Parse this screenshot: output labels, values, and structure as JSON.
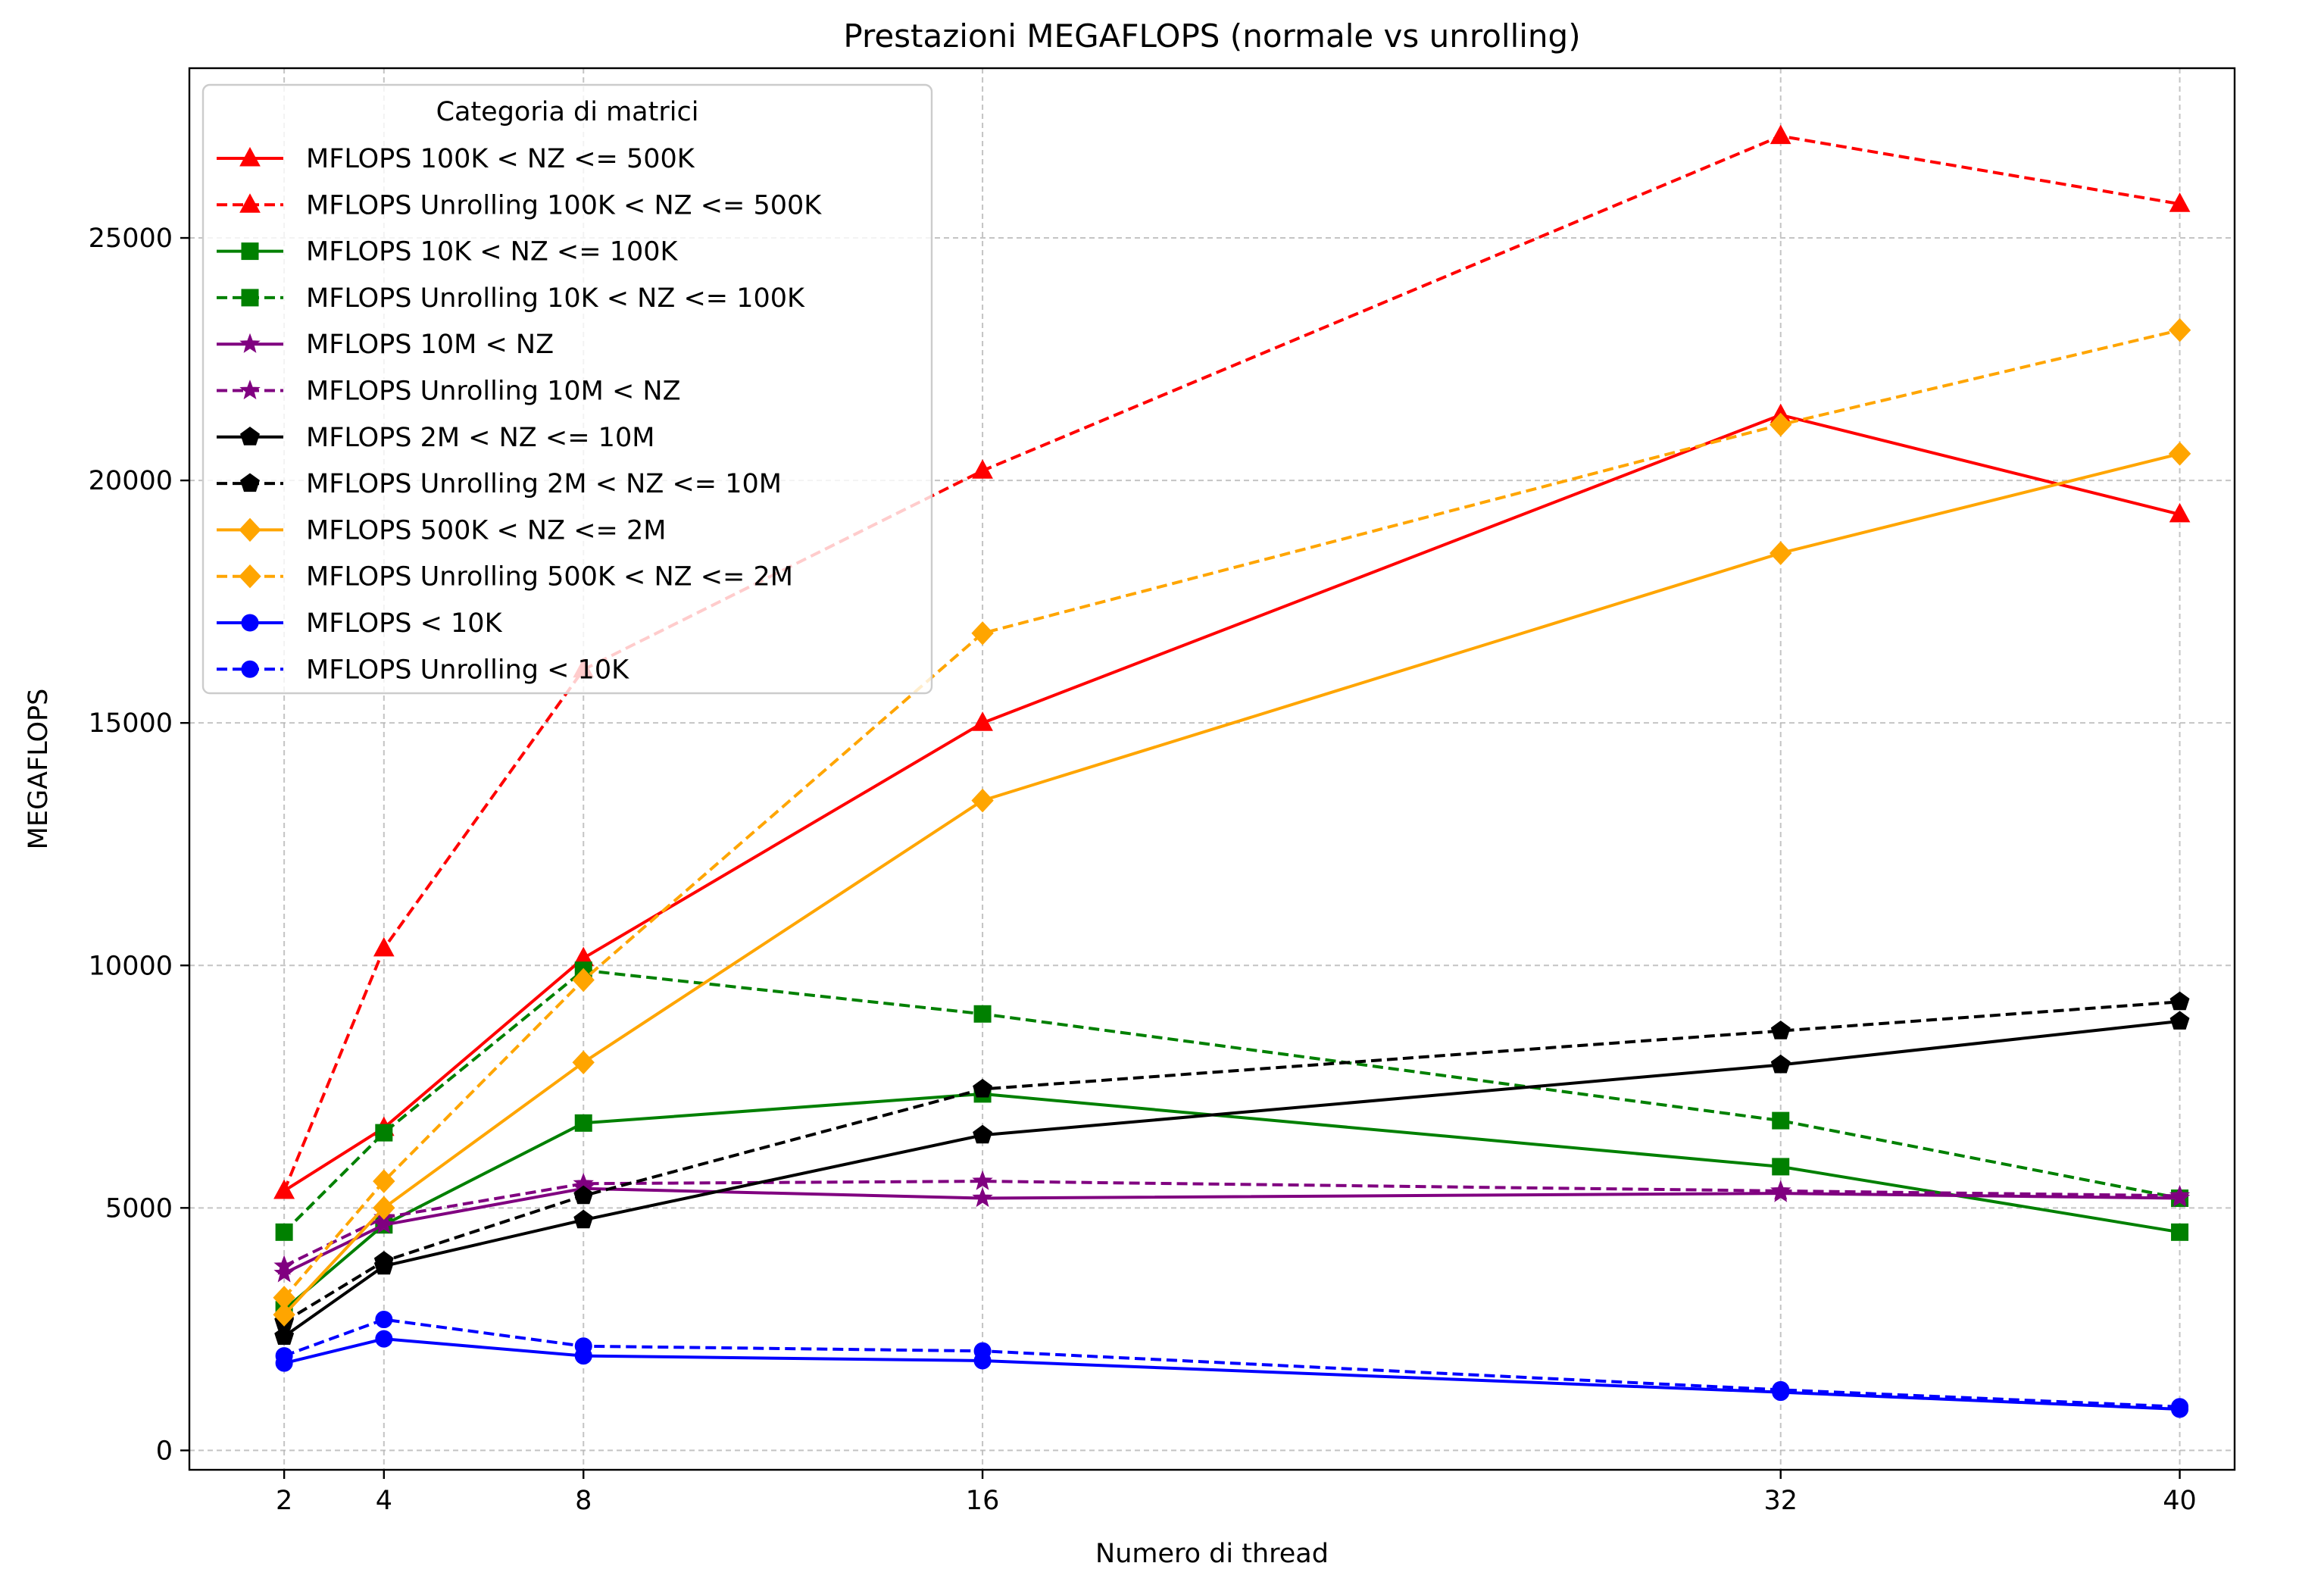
{
  "chart_data": {
    "type": "line",
    "title": "Prestazioni MEGAFLOPS (normale vs unrolling)",
    "xlabel": "Numero di thread",
    "ylabel": "MEGAFLOPS",
    "x": [
      2,
      4,
      8,
      16,
      32,
      40
    ],
    "xticks": [
      2,
      4,
      8,
      16,
      32,
      40
    ],
    "yticks": [
      0,
      5000,
      10000,
      15000,
      20000,
      25000
    ],
    "xlim": [
      0.1,
      41.1
    ],
    "ylim": [
      -400,
      28500
    ],
    "grid": true,
    "legend_title": "Categoria di matrici",
    "legend_position": "top-left",
    "series": [
      {
        "name": "MFLOPS 100K < NZ <= 500K",
        "color": "#ff0000",
        "style": "solid",
        "marker": "triangle",
        "values": [
          5350,
          6650,
          10150,
          15000,
          21350,
          19300
        ]
      },
      {
        "name": "MFLOPS Unrolling 100K < NZ <= 500K",
        "color": "#ff0000",
        "style": "dashed",
        "marker": "triangle",
        "values": [
          5350,
          10350,
          16100,
          20200,
          27100,
          25700
        ]
      },
      {
        "name": "MFLOPS 10K < NZ <= 100K",
        "color": "#008000",
        "style": "solid",
        "marker": "square",
        "values": [
          2900,
          4650,
          6750,
          7350,
          5850,
          4500
        ]
      },
      {
        "name": "MFLOPS Unrolling 10K < NZ <= 100K",
        "color": "#008000",
        "style": "dashed",
        "marker": "square",
        "values": [
          4500,
          6550,
          9900,
          9000,
          6800,
          5200
        ]
      },
      {
        "name": "MFLOPS 10M < NZ",
        "color": "#800080",
        "style": "solid",
        "marker": "star",
        "values": [
          3650,
          4650,
          5400,
          5200,
          5300,
          5200
        ]
      },
      {
        "name": "MFLOPS Unrolling 10M < NZ",
        "color": "#800080",
        "style": "dashed",
        "marker": "star",
        "values": [
          3800,
          4800,
          5500,
          5550,
          5350,
          5250
        ]
      },
      {
        "name": "MFLOPS 2M < NZ <= 10M",
        "color": "#000000",
        "style": "solid",
        "marker": "pentagon",
        "values": [
          2350,
          3800,
          4750,
          6500,
          7950,
          8850
        ]
      },
      {
        "name": "MFLOPS Unrolling 2M < NZ <= 10M",
        "color": "#000000",
        "style": "dashed",
        "marker": "pentagon",
        "values": [
          2650,
          3900,
          5250,
          7450,
          8650,
          9250
        ]
      },
      {
        "name": "MFLOPS 500K < NZ <= 2M",
        "color": "#ffa500",
        "style": "solid",
        "marker": "diamond",
        "values": [
          2800,
          5000,
          8000,
          13400,
          18500,
          20550
        ]
      },
      {
        "name": "MFLOPS Unrolling 500K < NZ <= 2M",
        "color": "#ffa500",
        "style": "dashed",
        "marker": "diamond",
        "values": [
          3150,
          5550,
          9700,
          16850,
          21150,
          23100
        ]
      },
      {
        "name": "MFLOPS < 10K",
        "color": "#0000ff",
        "style": "solid",
        "marker": "circle",
        "values": [
          1800,
          2300,
          1950,
          1850,
          1200,
          850
        ]
      },
      {
        "name": "MFLOPS Unrolling < 10K",
        "color": "#0000ff",
        "style": "dashed",
        "marker": "circle",
        "values": [
          1950,
          2700,
          2150,
          2050,
          1250,
          900
        ]
      }
    ]
  }
}
